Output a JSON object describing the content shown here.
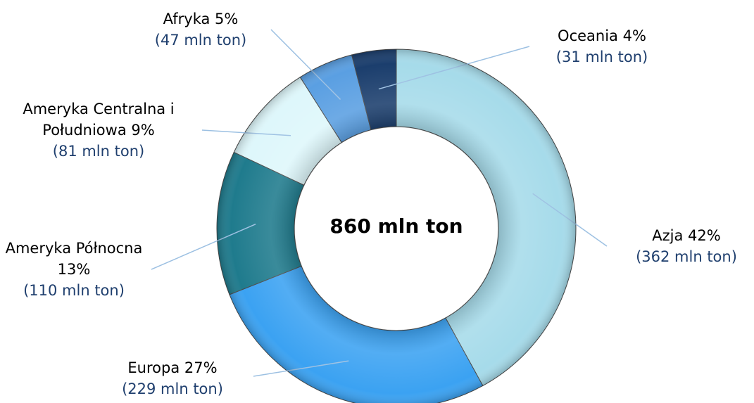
{
  "chart_data": {
    "type": "donut",
    "center_label": "860 mln ton",
    "categories": [
      "Azja",
      "Europa",
      "Ameryka Północna",
      "Ameryka Centralna i Południowa",
      "Afryka",
      "Oceania"
    ],
    "values": [
      42,
      27,
      13,
      9,
      5,
      4
    ],
    "value_labels": [
      "42%",
      "27%",
      "13%",
      "9%",
      "5%",
      "4%"
    ],
    "sublabels": [
      "(362 mln ton)",
      "(229 mln ton)",
      "(110 mln ton)",
      "(81 mln ton)",
      "(47 mln ton)",
      "(31 mln ton)"
    ],
    "colors": [
      "#a6dbea",
      "#3ba2f2",
      "#1f7b8d",
      "#def7fb",
      "#5a9fe2",
      "#1b3e6d"
    ]
  }
}
